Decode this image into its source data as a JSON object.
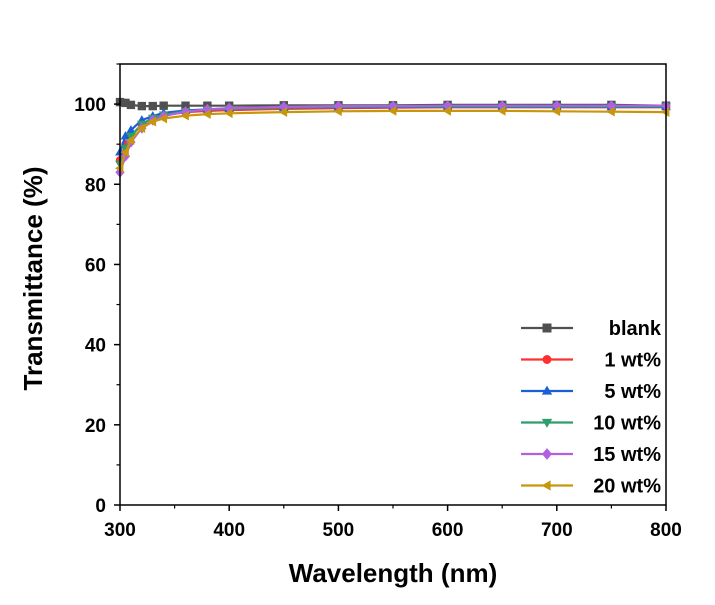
{
  "chart_data": {
    "type": "line",
    "title": "",
    "xlabel": "Wavelength (nm)",
    "ylabel": "Transmittance (%)",
    "xlim": [
      300,
      800
    ],
    "ylim": [
      0,
      110
    ],
    "xticks": [
      300,
      400,
      500,
      600,
      700,
      800
    ],
    "yticks": [
      0,
      20,
      40,
      60,
      80,
      100
    ],
    "grid": false,
    "legend_position": "bottom-right",
    "series": [
      {
        "name": "blank",
        "color": "#505050",
        "marker": "square",
        "x": [
          300,
          305,
          310,
          320,
          330,
          340,
          360,
          380,
          400,
          450,
          500,
          550,
          600,
          650,
          700,
          750,
          800
        ],
        "y": [
          100.5,
          100.3,
          99.8,
          99.5,
          99.5,
          99.6,
          99.6,
          99.6,
          99.6,
          99.7,
          99.7,
          99.7,
          99.8,
          99.8,
          99.8,
          99.8,
          99.6
        ]
      },
      {
        "name": "1 wt%",
        "color": "#ff3030",
        "marker": "circle",
        "x": [
          300,
          305,
          310,
          320,
          330,
          340,
          360,
          380,
          400,
          450,
          500,
          550,
          600,
          650,
          700,
          750,
          800
        ],
        "y": [
          86,
          90,
          92,
          95,
          96.5,
          97.2,
          98,
          98.3,
          98.5,
          98.8,
          99,
          99.1,
          99.2,
          99.2,
          99.2,
          99.2,
          99.2
        ]
      },
      {
        "name": "5 wt%",
        "color": "#1a5fd8",
        "marker": "triangle-up",
        "x": [
          300,
          305,
          310,
          320,
          330,
          340,
          360,
          380,
          400,
          450,
          500,
          550,
          600,
          650,
          700,
          750,
          800
        ],
        "y": [
          88,
          92,
          93.5,
          96,
          97,
          97.8,
          98.4,
          98.7,
          98.9,
          99.1,
          99.2,
          99.3,
          99.3,
          99.3,
          99.3,
          99.3,
          99.3
        ]
      },
      {
        "name": "10 wt%",
        "color": "#2e9e6a",
        "marker": "triangle-down",
        "x": [
          300,
          305,
          310,
          320,
          330,
          340,
          360,
          380,
          400,
          450,
          500,
          550,
          600,
          650,
          700,
          750,
          800
        ],
        "y": [
          85,
          89,
          92,
          95,
          96.5,
          97.3,
          98.2,
          98.6,
          98.8,
          99.1,
          99.3,
          99.4,
          99.4,
          99.4,
          99.4,
          99.4,
          99.4
        ]
      },
      {
        "name": "15 wt%",
        "color": "#b060e0",
        "marker": "diamond",
        "x": [
          300,
          305,
          310,
          320,
          330,
          340,
          360,
          380,
          400,
          450,
          500,
          550,
          600,
          650,
          700,
          750,
          800
        ],
        "y": [
          83,
          87,
          90.5,
          94,
          96,
          97,
          98.1,
          98.7,
          99,
          99.3,
          99.5,
          99.5,
          99.6,
          99.6,
          99.6,
          99.6,
          99.6
        ]
      },
      {
        "name": "20 wt%",
        "color": "#c8960a",
        "marker": "triangle-left",
        "x": [
          300,
          305,
          310,
          320,
          330,
          340,
          360,
          380,
          400,
          450,
          500,
          550,
          600,
          650,
          700,
          750,
          800
        ],
        "y": [
          84,
          88,
          91,
          94,
          95.6,
          96.4,
          97.1,
          97.5,
          97.7,
          98,
          98.2,
          98.3,
          98.3,
          98.3,
          98.2,
          98.1,
          98
        ]
      }
    ]
  }
}
